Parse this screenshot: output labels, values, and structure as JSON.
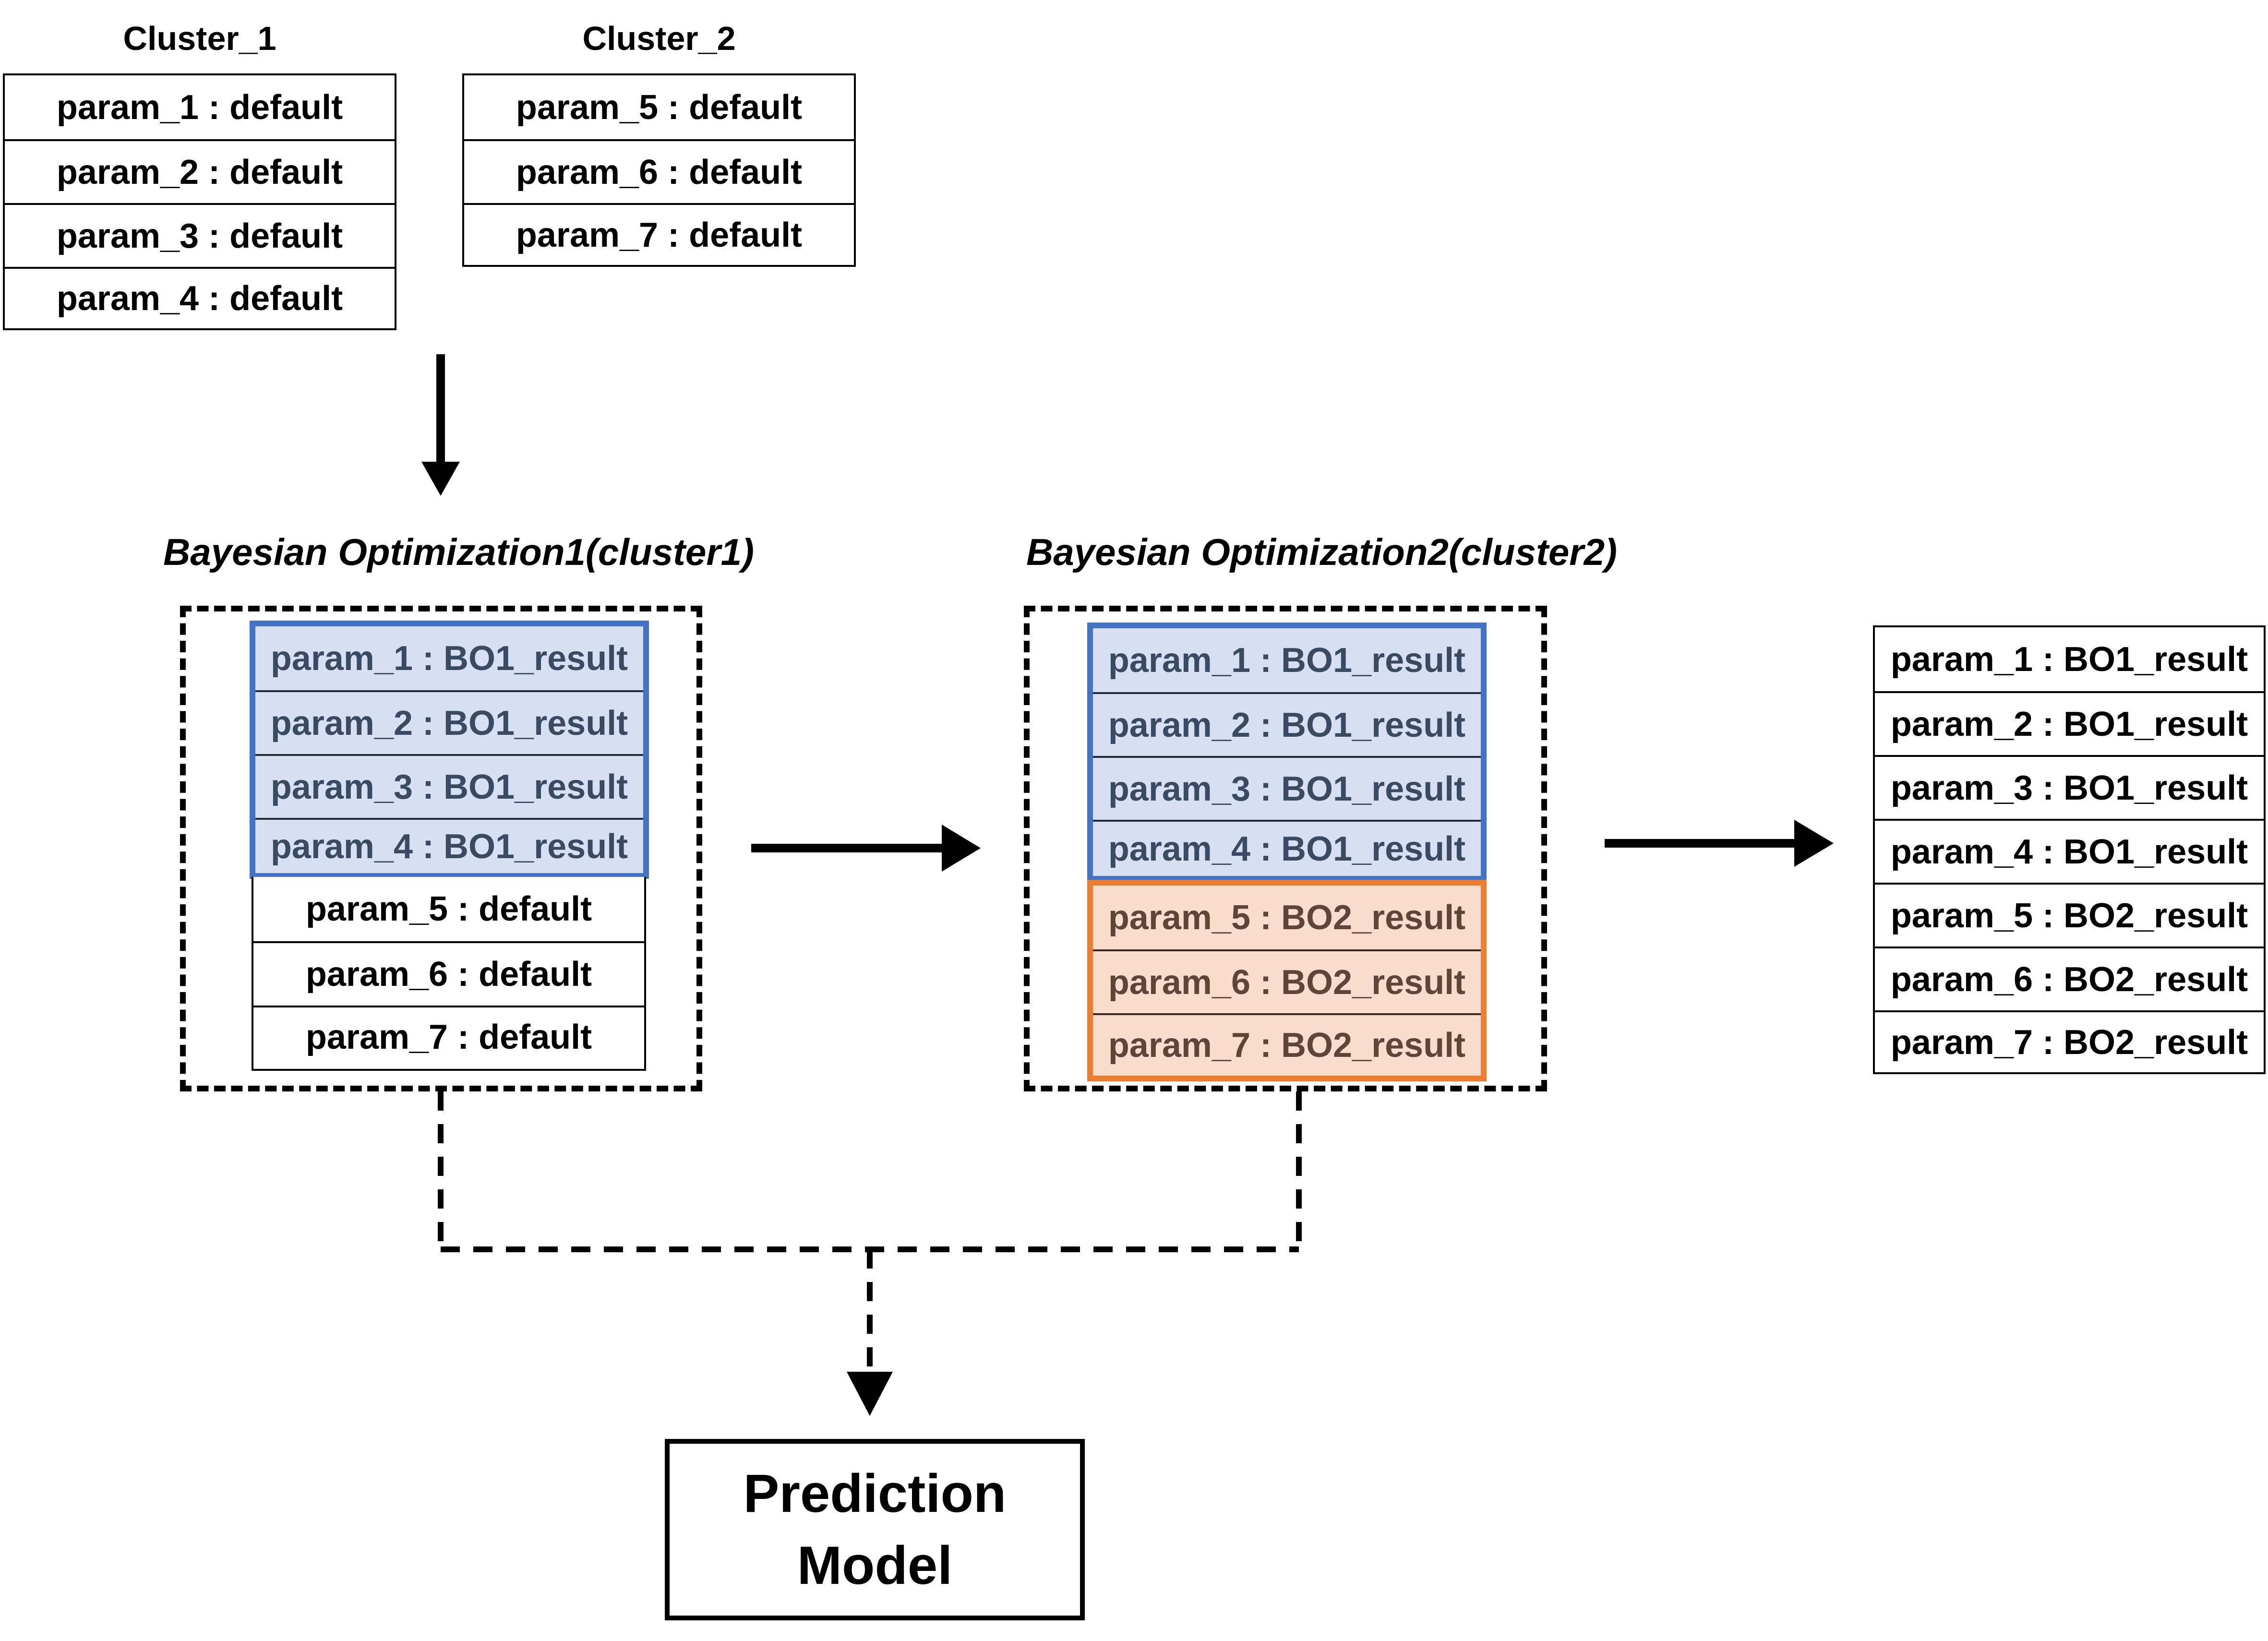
{
  "cluster1": {
    "title": "Cluster_1",
    "rows": [
      "param_1 : default",
      "param_2 : default",
      "param_3 : default",
      "param_4 : default"
    ]
  },
  "cluster2": {
    "title": "Cluster_2",
    "rows": [
      "param_5 : default",
      "param_6 : default",
      "param_7 : default"
    ]
  },
  "bo1": {
    "title": "Bayesian Optimization1(cluster1)",
    "optimized_rows": [
      "param_1 : BO1_result",
      "param_2 : BO1_result",
      "param_3 : BO1_result",
      "param_4 : BO1_result"
    ],
    "default_rows": [
      "param_5 : default",
      "param_6 : default",
      "param_7 : default"
    ]
  },
  "bo2": {
    "title": "Bayesian Optimization2(cluster2)",
    "bo1_rows": [
      "param_1 : BO1_result",
      "param_2 : BO1_result",
      "param_3 : BO1_result",
      "param_4 : BO1_result"
    ],
    "bo2_rows": [
      "param_5 : BO2_result",
      "param_6 : BO2_result",
      "param_7 : BO2_result"
    ]
  },
  "result": {
    "rows": [
      "param_1 : BO1_result",
      "param_2 : BO1_result",
      "param_3 : BO1_result",
      "param_4 : BO1_result",
      "param_5 : BO2_result",
      "param_6 : BO2_result",
      "param_7 : BO2_result"
    ]
  },
  "prediction_model": {
    "line1": "Prediction",
    "line2": "Model"
  },
  "colors": {
    "bo1_accent": "#4472C4",
    "bo1_fill": "#D6E0F2",
    "bo2_accent": "#ED7D31",
    "bo2_fill": "#F9DCCB"
  }
}
